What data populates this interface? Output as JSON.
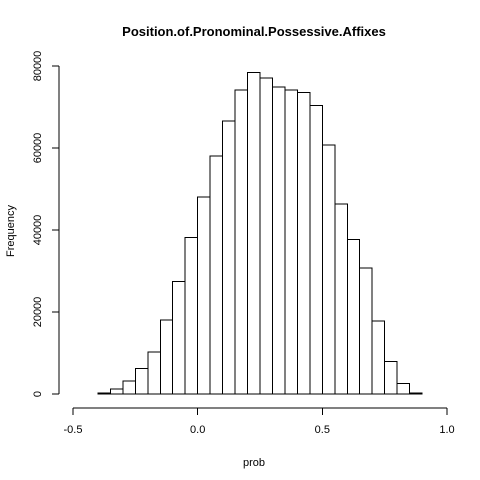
{
  "chart_data": {
    "type": "bar",
    "title": "Position.of.Pronominal.Possessive.Affixes",
    "xlabel": "prob",
    "ylabel": "Frequency",
    "xlim": [
      -0.5,
      1.0
    ],
    "ylim": [
      0,
      80000
    ],
    "x_ticks": [
      -0.5,
      0.0,
      0.5,
      1.0
    ],
    "x_tick_labels": [
      "-0.5",
      "0.0",
      "0.5",
      "1.0"
    ],
    "y_ticks": [
      0,
      20000,
      40000,
      60000,
      80000
    ],
    "y_tick_labels": [
      "0",
      "20000",
      "40000",
      "60000",
      "80000"
    ],
    "bin_width": 0.05,
    "bins": [
      {
        "start": -0.4,
        "end": -0.35,
        "value": 200
      },
      {
        "start": -0.35,
        "end": -0.3,
        "value": 1200
      },
      {
        "start": -0.3,
        "end": -0.25,
        "value": 3200
      },
      {
        "start": -0.25,
        "end": -0.2,
        "value": 6200
      },
      {
        "start": -0.2,
        "end": -0.15,
        "value": 10300
      },
      {
        "start": -0.15,
        "end": -0.1,
        "value": 18000
      },
      {
        "start": -0.1,
        "end": -0.05,
        "value": 27500
      },
      {
        "start": -0.05,
        "end": 0.0,
        "value": 38200
      },
      {
        "start": 0.0,
        "end": 0.05,
        "value": 48000
      },
      {
        "start": 0.05,
        "end": 0.1,
        "value": 58000
      },
      {
        "start": 0.1,
        "end": 0.15,
        "value": 66600
      },
      {
        "start": 0.15,
        "end": 0.2,
        "value": 74200
      },
      {
        "start": 0.2,
        "end": 0.25,
        "value": 78400
      },
      {
        "start": 0.25,
        "end": 0.3,
        "value": 77100
      },
      {
        "start": 0.3,
        "end": 0.35,
        "value": 74900
      },
      {
        "start": 0.35,
        "end": 0.4,
        "value": 74100
      },
      {
        "start": 0.4,
        "end": 0.45,
        "value": 73500
      },
      {
        "start": 0.45,
        "end": 0.5,
        "value": 70400
      },
      {
        "start": 0.5,
        "end": 0.55,
        "value": 60700
      },
      {
        "start": 0.55,
        "end": 0.6,
        "value": 46300
      },
      {
        "start": 0.6,
        "end": 0.65,
        "value": 37700
      },
      {
        "start": 0.65,
        "end": 0.7,
        "value": 30700
      },
      {
        "start": 0.7,
        "end": 0.75,
        "value": 17800
      },
      {
        "start": 0.75,
        "end": 0.8,
        "value": 7900
      },
      {
        "start": 0.8,
        "end": 0.85,
        "value": 2600
      },
      {
        "start": 0.85,
        "end": 0.9,
        "value": 200
      }
    ],
    "grid": false,
    "legend": "none",
    "colors": {
      "bar_fill": "#ffffff",
      "bar_stroke": "#000000",
      "axis": "#000000",
      "background": "#ffffff"
    }
  }
}
